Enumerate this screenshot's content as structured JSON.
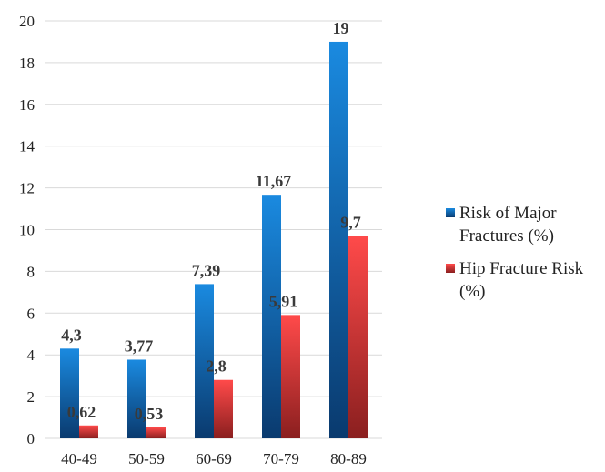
{
  "chart_data": {
    "type": "bar",
    "categories": [
      "40-49",
      "50-59",
      "60-69",
      "70-79",
      "80-89"
    ],
    "series": [
      {
        "name": "Risk of Major Fractures (%)",
        "legend_lines": [
          "Risk of Major",
          "Fractures (%)"
        ],
        "values": [
          4.3,
          3.77,
          7.39,
          11.67,
          19
        ],
        "labels": [
          "4,3",
          "3,77",
          "7,39",
          "11,67",
          "19"
        ],
        "color_top": "#1a8ae0",
        "color_bottom": "#0a3a6e"
      },
      {
        "name": "Hip Fracture Risk (%)",
        "legend_lines": [
          "Hip Fracture Risk",
          "(%)"
        ],
        "values": [
          0.62,
          0.53,
          2.8,
          5.91,
          9.7
        ],
        "labels": [
          "0,62",
          "0,53",
          "2,8",
          "5,91",
          "9,7"
        ],
        "color_top": "#ff4a4a",
        "color_bottom": "#8a1f1f"
      }
    ],
    "yticks": [
      "0",
      "2",
      "4",
      "6",
      "8",
      "10",
      "12",
      "14",
      "16",
      "18",
      "20"
    ],
    "ylim": [
      0,
      20
    ],
    "grid": true,
    "legend_position": "right"
  }
}
